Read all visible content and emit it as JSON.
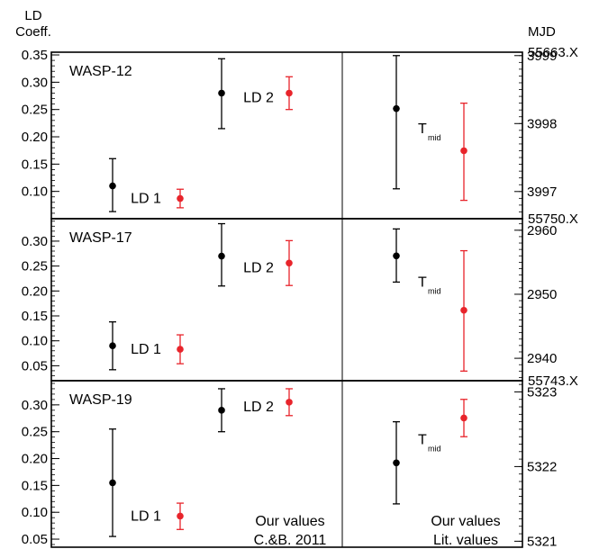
{
  "chart_data": {
    "type": "scatter",
    "axis_left_label": [
      "LD",
      "Coeff."
    ],
    "axis_right_label": "MJD",
    "colors": {
      "ours": "#000000",
      "lit": "#e8242b"
    },
    "legend": {
      "left": {
        "ours": "Our values",
        "lit": "C.&B. 2011"
      },
      "right": {
        "ours": "Our values",
        "lit": "Lit. values"
      }
    },
    "param_labels": {
      "ld1": "LD 1",
      "ld2": "LD 2",
      "tmid_main": "T",
      "tmid_sub": "mid"
    },
    "panels": [
      {
        "name": "WASP-12",
        "left_ylim": [
          0.05,
          0.355
        ],
        "left_ticks": [
          0.35,
          0.3,
          0.25,
          0.2,
          0.15,
          0.1
        ],
        "left_tick_labels": [
          "0.35",
          "0.30",
          "0.25",
          "0.20",
          "0.15",
          "0.10"
        ],
        "right_offset": "55663.X",
        "right_ylim": [
          3996.6,
          3999.05
        ],
        "right_ticks": [
          3999,
          3998,
          3997
        ],
        "right_tick_labels": [
          "3999",
          "3998",
          "3997"
        ],
        "ld1": {
          "ours": [
            0.11,
            0.063,
            0.16
          ],
          "lit": [
            0.087,
            0.07,
            0.104
          ]
        },
        "ld2": {
          "ours": [
            0.28,
            0.215,
            0.343
          ],
          "lit": [
            0.28,
            0.25,
            0.31
          ]
        },
        "tmid": {
          "ours": [
            3998.22,
            3997.04,
            3999.0
          ],
          "lit": [
            3997.6,
            3996.87,
            3998.3
          ]
        }
      },
      {
        "name": "WASP-17",
        "left_ylim": [
          0.02,
          0.345
        ],
        "left_ticks": [
          0.3,
          0.25,
          0.2,
          0.15,
          0.1,
          0.05
        ],
        "left_tick_labels": [
          "0.30",
          "0.25",
          "0.20",
          "0.15",
          "0.10",
          "0.05"
        ],
        "right_offset": "55750.X",
        "right_ylim": [
          2936.5,
          2961.8
        ],
        "right_ticks": [
          2960,
          2950,
          2940
        ],
        "right_tick_labels": [
          "2960",
          "2950",
          "2940"
        ],
        "ld1": {
          "ours": [
            0.09,
            0.042,
            0.138
          ],
          "lit": [
            0.083,
            0.054,
            0.112
          ]
        },
        "ld2": {
          "ours": [
            0.27,
            0.21,
            0.335
          ],
          "lit": [
            0.256,
            0.211,
            0.301
          ]
        },
        "tmid": {
          "ours": [
            2956,
            2951.9,
            2960.2
          ],
          "lit": [
            2947.5,
            2938,
            2956.8
          ]
        }
      },
      {
        "name": "WASP-19",
        "left_ylim": [
          0.035,
          0.345
        ],
        "left_ticks": [
          0.3,
          0.25,
          0.2,
          0.15,
          0.1,
          0.05
        ],
        "left_tick_labels": [
          "0.30",
          "0.25",
          "0.20",
          "0.15",
          "0.10",
          "0.05"
        ],
        "right_offset": "55743.X",
        "right_ylim": [
          5320.92,
          5323.15
        ],
        "right_ticks": [
          5323,
          5322,
          5321
        ],
        "right_tick_labels": [
          "5323",
          "5322",
          "5321"
        ],
        "ld1": {
          "ours": [
            0.155,
            0.055,
            0.255
          ],
          "lit": [
            0.093,
            0.068,
            0.117
          ]
        },
        "ld2": {
          "ours": [
            0.29,
            0.25,
            0.33
          ],
          "lit": [
            0.305,
            0.28,
            0.33
          ]
        },
        "tmid": {
          "ours": [
            5322.05,
            5321.5,
            5322.6
          ],
          "lit": [
            5322.65,
            5322.4,
            5322.9
          ]
        }
      }
    ]
  }
}
